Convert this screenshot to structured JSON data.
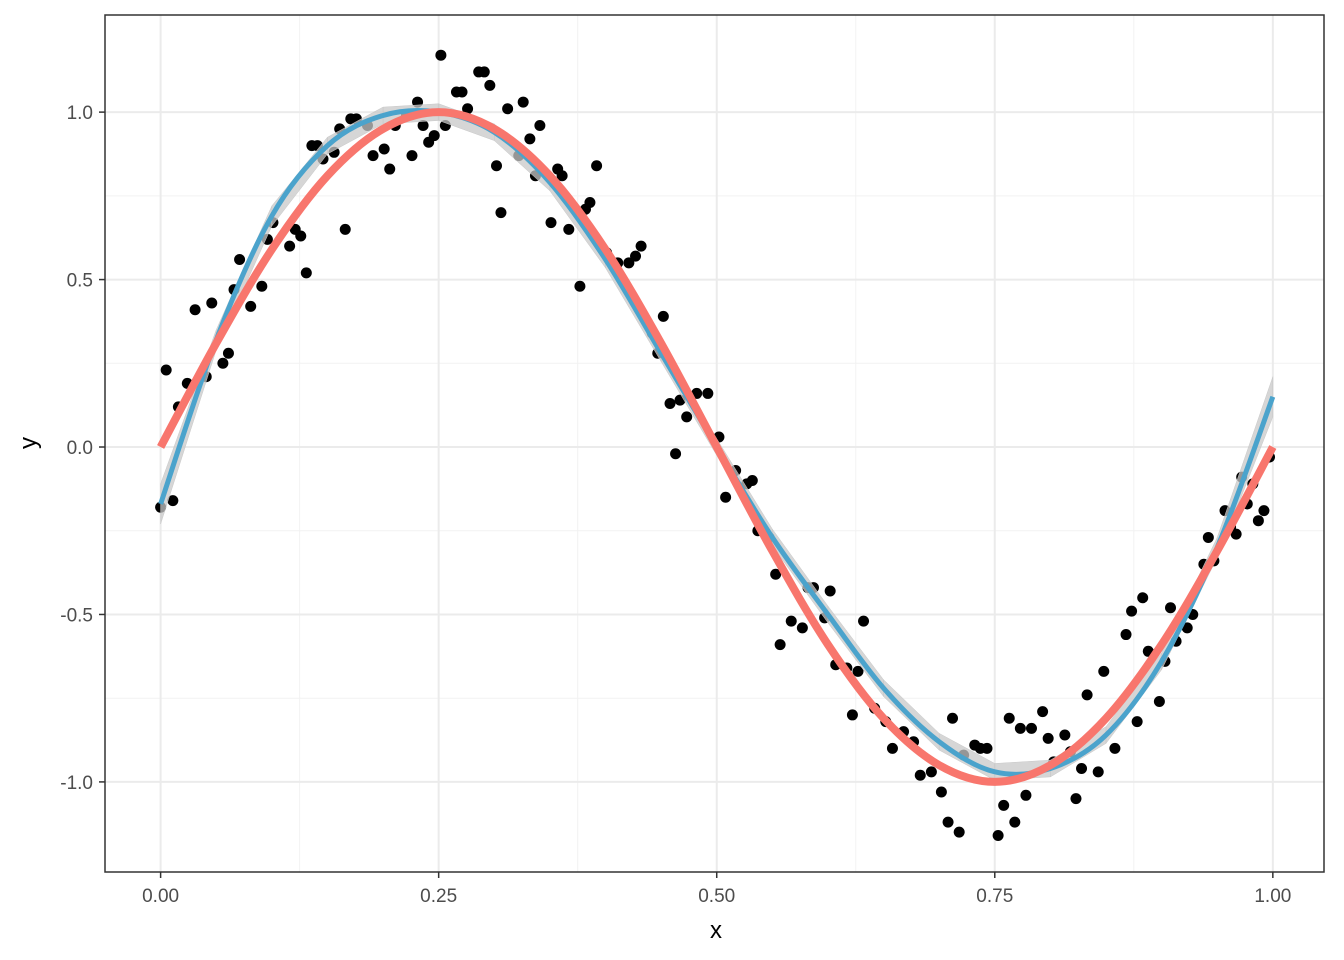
{
  "chart_data": {
    "type": "scatter",
    "x_label": "x",
    "y_label": "y",
    "xlim": [
      -0.05,
      1.046
    ],
    "ylim": [
      -1.269,
      1.29
    ],
    "xticks": [
      {
        "value": 0,
        "label": "0.00"
      },
      {
        "value": 0.25,
        "label": "0.25"
      },
      {
        "value": 0.5,
        "label": "0.50"
      },
      {
        "value": 0.75,
        "label": "0.75"
      },
      {
        "value": 1,
        "label": "1.00"
      }
    ],
    "yticks": [
      {
        "value": -1,
        "label": "-1.0"
      },
      {
        "value": -0.5,
        "label": "-0.5"
      },
      {
        "value": 0,
        "label": "0.0"
      },
      {
        "value": 0.5,
        "label": "0.5"
      },
      {
        "value": 1,
        "label": "1.0"
      }
    ],
    "x_minor_grid": [
      0.125,
      0.375,
      0.625,
      0.875
    ],
    "y_minor_grid": [
      -0.75,
      -0.25,
      0.25,
      0.75
    ],
    "grid": true,
    "points": {
      "color": "#000000",
      "x": [
        0.0,
        0.005,
        0.011,
        0.016,
        0.024,
        0.031,
        0.041,
        0.046,
        0.056,
        0.061,
        0.066,
        0.071,
        0.081,
        0.091,
        0.096,
        0.101,
        0.116,
        0.121,
        0.126,
        0.131,
        0.136,
        0.141,
        0.146,
        0.156,
        0.161,
        0.166,
        0.171,
        0.176,
        0.186,
        0.191,
        0.201,
        0.206,
        0.211,
        0.221,
        0.226,
        0.231,
        0.236,
        0.241,
        0.246,
        0.252,
        0.256,
        0.266,
        0.271,
        0.276,
        0.286,
        0.291,
        0.296,
        0.302,
        0.306,
        0.312,
        0.322,
        0.326,
        0.332,
        0.337,
        0.341,
        0.351,
        0.357,
        0.361,
        0.367,
        0.377,
        0.382,
        0.386,
        0.392,
        0.401,
        0.411,
        0.421,
        0.427,
        0.432,
        0.442,
        0.447,
        0.452,
        0.458,
        0.463,
        0.467,
        0.473,
        0.482,
        0.492,
        0.502,
        0.508,
        0.517,
        0.527,
        0.532,
        0.537,
        0.547,
        0.553,
        0.557,
        0.567,
        0.577,
        0.582,
        0.587,
        0.597,
        0.602,
        0.607,
        0.617,
        0.622,
        0.627,
        0.632,
        0.642,
        0.652,
        0.658,
        0.668,
        0.677,
        0.683,
        0.693,
        0.702,
        0.708,
        0.712,
        0.718,
        0.722,
        0.732,
        0.737,
        0.743,
        0.753,
        0.758,
        0.763,
        0.768,
        0.773,
        0.778,
        0.783,
        0.793,
        0.798,
        0.803,
        0.813,
        0.818,
        0.823,
        0.828,
        0.833,
        0.843,
        0.848,
        0.858,
        0.868,
        0.873,
        0.878,
        0.883,
        0.888,
        0.898,
        0.903,
        0.908,
        0.913,
        0.923,
        0.928,
        0.938,
        0.942,
        0.947,
        0.957,
        0.962,
        0.967,
        0.972,
        0.977,
        0.982,
        0.987,
        0.992,
        0.997
      ],
      "y": [
        -0.18,
        0.23,
        -0.16,
        0.12,
        0.19,
        0.41,
        0.21,
        0.43,
        0.25,
        0.28,
        0.47,
        0.56,
        0.42,
        0.48,
        0.62,
        0.67,
        0.6,
        0.65,
        0.63,
        0.52,
        0.9,
        0.9,
        0.86,
        0.88,
        0.95,
        0.65,
        0.98,
        0.98,
        0.96,
        0.87,
        0.89,
        0.83,
        0.96,
        0.99,
        0.87,
        1.03,
        0.96,
        0.91,
        0.93,
        1.17,
        0.96,
        1.06,
        1.06,
        1.01,
        1.12,
        1.12,
        1.08,
        0.84,
        0.7,
        1.01,
        0.87,
        1.03,
        0.92,
        0.81,
        0.96,
        0.67,
        0.83,
        0.81,
        0.65,
        0.48,
        0.71,
        0.73,
        0.84,
        0.58,
        0.55,
        0.55,
        0.57,
        0.6,
        0.34,
        0.28,
        0.39,
        0.13,
        -0.02,
        0.14,
        0.09,
        0.16,
        0.16,
        0.03,
        -0.15,
        -0.07,
        -0.11,
        -0.1,
        -0.25,
        -0.27,
        -0.38,
        -0.59,
        -0.52,
        -0.54,
        -0.42,
        -0.42,
        -0.51,
        -0.43,
        -0.65,
        -0.66,
        -0.8,
        -0.67,
        -0.52,
        -0.78,
        -0.82,
        -0.9,
        -0.85,
        -0.88,
        -0.98,
        -0.97,
        -1.03,
        -1.12,
        -0.81,
        -1.15,
        -0.92,
        -0.89,
        -0.9,
        -0.9,
        -1.16,
        -1.07,
        -0.81,
        -1.12,
        -0.84,
        -1.04,
        -0.84,
        -0.79,
        -0.87,
        -0.94,
        -0.86,
        -0.91,
        -1.05,
        -0.96,
        -0.74,
        -0.97,
        -0.67,
        -0.9,
        -0.56,
        -0.49,
        -0.82,
        -0.45,
        -0.61,
        -0.76,
        -0.64,
        -0.48,
        -0.58,
        -0.54,
        -0.5,
        -0.35,
        -0.27,
        -0.34,
        -0.19,
        -0.24,
        -0.26,
        -0.09,
        -0.17,
        -0.11,
        -0.22,
        -0.19,
        -0.03
      ]
    },
    "lines": [
      {
        "color": "#4BA3CC",
        "width": 5,
        "band_color": "#c8c8c8",
        "x": [
          0,
          0.05,
          0.1,
          0.15,
          0.2,
          0.25,
          0.3,
          0.35,
          0.4,
          0.45,
          0.5,
          0.55,
          0.6,
          0.65,
          0.7,
          0.75,
          0.8,
          0.85,
          0.9,
          0.95,
          1
        ],
        "y": [
          -0.17,
          0.32,
          0.69,
          0.9,
          0.99,
          1.0,
          0.94,
          0.79,
          0.56,
          0.28,
          0.0,
          -0.27,
          -0.5,
          -0.72,
          -0.88,
          -0.97,
          -0.96,
          -0.86,
          -0.64,
          -0.3,
          0.15
        ],
        "band_lower": [
          -0.23,
          0.29,
          0.66,
          0.875,
          0.965,
          0.975,
          0.915,
          0.765,
          0.535,
          0.255,
          -0.025,
          -0.295,
          -0.525,
          -0.745,
          -0.905,
          -0.995,
          -0.985,
          -0.885,
          -0.665,
          -0.33,
          0.09
        ],
        "band_upper": [
          -0.11,
          0.35,
          0.72,
          0.925,
          1.015,
          1.025,
          0.965,
          0.815,
          0.585,
          0.305,
          0.025,
          -0.245,
          -0.475,
          -0.695,
          -0.855,
          -0.945,
          -0.935,
          -0.835,
          -0.615,
          -0.27,
          0.21
        ]
      },
      {
        "color": "#F8766D",
        "width": 8,
        "x": [
          0,
          0.05,
          0.1,
          0.15,
          0.2,
          0.25,
          0.3,
          0.35,
          0.4,
          0.45,
          0.5,
          0.55,
          0.6,
          0.65,
          0.7,
          0.75,
          0.8,
          0.85,
          0.9,
          0.95,
          1
        ],
        "y": [
          0,
          0.31,
          0.59,
          0.81,
          0.95,
          1,
          0.95,
          0.81,
          0.59,
          0.31,
          0,
          -0.31,
          -0.59,
          -0.81,
          -0.95,
          -1,
          -0.95,
          -0.81,
          -0.59,
          -0.31,
          0
        ]
      }
    ]
  }
}
